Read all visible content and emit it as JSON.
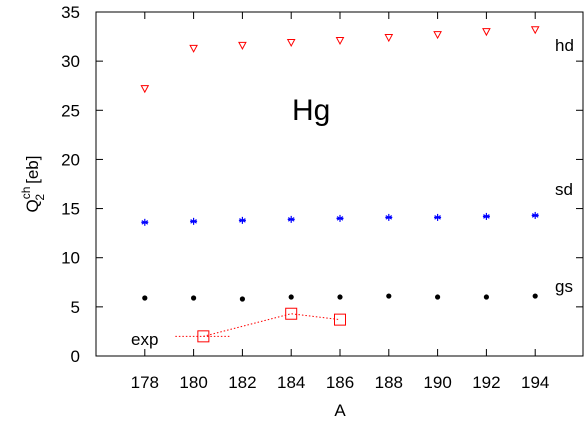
{
  "chart_data": {
    "type": "scatter",
    "title": "Hg",
    "xlabel": "A",
    "ylabel": {
      "base": "Q",
      "superscript": "ch",
      "subscript": "2",
      "unit": "[eb]"
    },
    "xlim": [
      176,
      196
    ],
    "ylim": [
      0,
      35
    ],
    "xticks": [
      "178",
      "180",
      "182",
      "184",
      "186",
      "188",
      "190",
      "192",
      "194"
    ],
    "yticks": [
      "0",
      "5",
      "10",
      "15",
      "20",
      "25",
      "30",
      "35"
    ],
    "grid": false,
    "series": [
      {
        "name": "hd",
        "color": "#ff0000",
        "marker": "triangle-down",
        "line": false,
        "x": [
          178,
          180,
          182,
          184,
          186,
          188,
          190,
          192,
          194
        ],
        "y": [
          27.2,
          31.3,
          31.6,
          31.9,
          32.1,
          32.4,
          32.7,
          33.0,
          33.2
        ]
      },
      {
        "name": "sd",
        "color": "#0000ff",
        "marker": "asterisk",
        "line": false,
        "x": [
          178,
          180,
          182,
          184,
          186,
          188,
          190,
          192,
          194
        ],
        "y": [
          13.6,
          13.7,
          13.8,
          13.9,
          14.0,
          14.1,
          14.1,
          14.2,
          14.3
        ]
      },
      {
        "name": "gs",
        "color": "#000000",
        "marker": "circle",
        "line": false,
        "x": [
          178,
          180,
          182,
          184,
          186,
          188,
          190,
          192,
          194
        ],
        "y": [
          5.9,
          5.9,
          5.8,
          6.0,
          6.0,
          6.1,
          6.0,
          6.0,
          6.1
        ]
      },
      {
        "name": "exp",
        "color": "#ff0000",
        "marker": "square-open",
        "line": true,
        "x": [
          180.4,
          184,
          186
        ],
        "y": [
          2.0,
          4.3,
          3.7
        ]
      }
    ]
  }
}
